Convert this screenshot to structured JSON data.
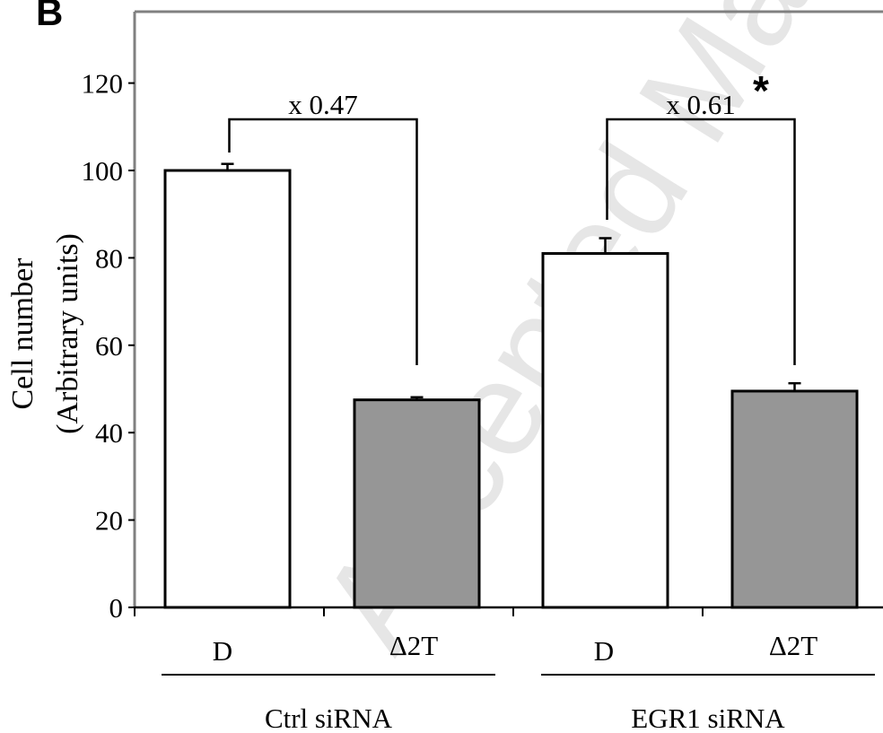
{
  "panel_label": "B",
  "watermark": "Accepted Manuscript",
  "chart_data": {
    "type": "bar",
    "title": "",
    "ylabel_line1": "Cell number",
    "ylabel_line2": "(Arbitrary units)",
    "ylim": [
      0,
      140
    ],
    "yticks": [
      0,
      20,
      40,
      60,
      80,
      100,
      120
    ],
    "grid": false,
    "groups": [
      {
        "label": "Ctrl siRNA",
        "bars": [
          {
            "category": "D",
            "value": 100,
            "error": 1.5,
            "fill": "#ffffff"
          },
          {
            "category": "Δ2T",
            "value": 47.5,
            "error": 0.6,
            "fill": "#969696"
          }
        ],
        "ratio_label": "x 0.47",
        "significance": ""
      },
      {
        "label": "EGR1 siRNA",
        "bars": [
          {
            "category": "D",
            "value": 81,
            "error": 3.5,
            "fill": "#ffffff"
          },
          {
            "category": "Δ2T",
            "value": 49.5,
            "error": 1.8,
            "fill": "#969696"
          }
        ],
        "ratio_label": "x 0.61",
        "significance": "*"
      }
    ]
  }
}
